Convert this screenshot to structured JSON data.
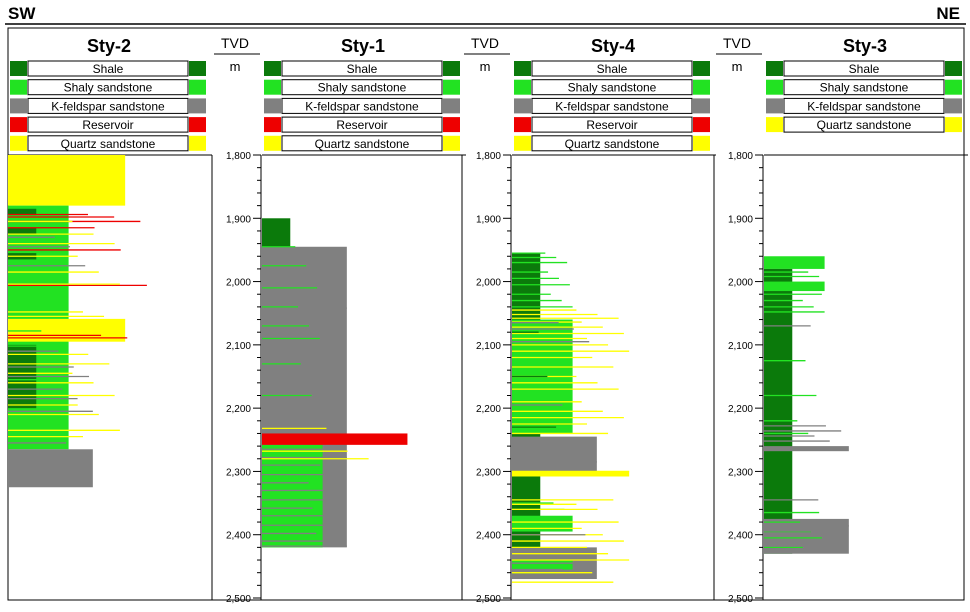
{
  "header": {
    "left": "SW",
    "right": "NE"
  },
  "colors": {
    "shale": "#0b7a0b",
    "shaly": "#22e222",
    "kfeld": "#808080",
    "reservoir": "#ee0000",
    "quartz": "#ffff00"
  },
  "legend_labels": {
    "shale": "Shale",
    "shaly": "Shaly sandstone",
    "kfeld": "K-feldspar sandstone",
    "reservoir": "Reservoir",
    "quartz": "Quartz sandstone"
  },
  "tvd": {
    "title": "TVD",
    "unit": "m"
  },
  "chart_data": {
    "type": "well-log-correlation",
    "y_axis": {
      "label": "TVD (m)",
      "range": [
        1800,
        2500
      ],
      "ticks": [
        1800,
        1900,
        2000,
        2100,
        2200,
        2300,
        2400,
        2500
      ],
      "tick_labels": [
        "1,800",
        "1,900",
        "2,000",
        "2,100",
        "2,200",
        "2,300",
        "2,400",
        "2,500"
      ]
    },
    "wells": [
      {
        "name": "Sty-2",
        "legend": [
          "shale",
          "shaly",
          "kfeld",
          "reservoir",
          "quartz"
        ],
        "intervals": [
          {
            "lith": "quartz",
            "top": 1800,
            "base": 1880
          },
          {
            "lith": "shaly",
            "top": 1880,
            "base": 2265
          },
          {
            "lith": "shale",
            "top": 1885,
            "base": 1895
          },
          {
            "lith": "shale",
            "top": 1915,
            "base": 1925
          },
          {
            "lith": "shale",
            "top": 1955,
            "base": 1965
          },
          {
            "lith": "quartz",
            "top": 2060,
            "base": 2095
          },
          {
            "lith": "shale",
            "top": 2100,
            "base": 2200
          },
          {
            "lith": "kfeld",
            "top": 2265,
            "base": 2325
          }
        ],
        "thin_beds": [
          {
            "lith": "reservoir",
            "depths": [
              1894,
              1898,
              1905,
              1915,
              1950,
              2006,
              2085,
              2089
            ]
          },
          {
            "lith": "quartz",
            "depths": [
              1905,
              1925,
              1940,
              1960,
              1985,
              2004,
              2048,
              2055,
              2060,
              2115,
              2130,
              2145,
              2160,
              2180,
              2195,
              2210,
              2235,
              2245
            ]
          },
          {
            "lith": "kfeld",
            "depths": [
              1930,
              1945,
              1975,
              2110,
              2135,
              2150,
              2170,
              2185,
              2205,
              2255,
              2275,
              2292
            ]
          },
          {
            "lith": "shaly",
            "depths": [
              2078,
              2102,
              2155,
              2225
            ]
          }
        ]
      },
      {
        "name": "Sty-1",
        "legend": [
          "shale",
          "shaly",
          "kfeld",
          "reservoir",
          "quartz"
        ],
        "intervals": [
          {
            "lith": "shale",
            "top": 1900,
            "base": 1945
          },
          {
            "lith": "kfeld",
            "top": 1945,
            "base": 2420
          },
          {
            "lith": "shaly",
            "top": 2258,
            "base": 2420
          },
          {
            "lith": "reservoir",
            "top": 2240,
            "base": 2258
          }
        ],
        "thin_beds": [
          {
            "lith": "kfeld",
            "depths": [
              1952,
              1960,
              1972,
              1980,
              1995,
              2005,
              2018,
              2030,
              2042,
              2055,
              2068,
              2080,
              2095,
              2108,
              2120,
              2160,
              2175,
              2205,
              2265,
              2278,
              2290,
              2305,
              2318,
              2330,
              2345,
              2358,
              2370,
              2385,
              2398,
              2410,
              2418
            ]
          },
          {
            "lith": "shaly",
            "depths": [
              1945,
              1975,
              2010,
              2040,
              2070,
              2090,
              2130,
              2180,
              2270,
              2310,
              2350,
              2390
            ]
          },
          {
            "lith": "quartz",
            "depths": [
              2232,
              2268,
              2280
            ]
          },
          {
            "lith": "reservoir",
            "depths": [
              2246,
              2250,
              2254
            ]
          }
        ]
      },
      {
        "name": "Sty-4",
        "legend": [
          "shale",
          "shaly",
          "kfeld",
          "reservoir",
          "quartz"
        ],
        "intervals": [
          {
            "lith": "shale",
            "top": 1955,
            "base": 2470
          },
          {
            "lith": "shaly",
            "top": 2060,
            "base": 2240
          },
          {
            "lith": "kfeld",
            "top": 2245,
            "base": 2300
          },
          {
            "lith": "quartz",
            "top": 2300,
            "base": 2308
          },
          {
            "lith": "shaly",
            "top": 2370,
            "base": 2395
          },
          {
            "lith": "kfeld",
            "top": 2420,
            "base": 2470
          },
          {
            "lith": "shaly",
            "top": 2440,
            "base": 2455
          }
        ],
        "thin_beds": [
          {
            "lith": "shaly",
            "depths": [
              1955,
              1962,
              1970,
              1985,
              1995,
              2005,
              2020,
              2030,
              2040,
              2350,
              2360,
              2440,
              2460
            ]
          },
          {
            "lith": "quartz",
            "depths": [
              2045,
              2052,
              2058,
              2064,
              2072,
              2082,
              2090,
              2100,
              2110,
              2120,
              2135,
              2150,
              2160,
              2170,
              2190,
              2205,
              2215,
              2225,
              2240,
              2300,
              2305,
              2345,
              2352,
              2360,
              2380,
              2390,
              2400,
              2410,
              2420,
              2430,
              2440,
              2460,
              2475
            ]
          },
          {
            "lith": "kfeld",
            "depths": [
              2065,
              2075,
              2095,
              2195,
              2250,
              2258,
              2266,
              2275,
              2285,
              2295,
              2400,
              2425,
              2435,
              2445,
              2455,
              2465
            ]
          },
          {
            "lith": "shale",
            "depths": [
              2080,
              2150,
              2230
            ]
          }
        ]
      },
      {
        "name": "Sty-3",
        "legend": [
          "shale",
          "shaly",
          "kfeld",
          "quartz"
        ],
        "intervals": [
          {
            "lith": "shaly",
            "top": 1960,
            "base": 1980
          },
          {
            "lith": "shale",
            "top": 1980,
            "base": 2430
          },
          {
            "lith": "shaly",
            "top": 2000,
            "base": 2015
          },
          {
            "lith": "kfeld",
            "top": 2260,
            "base": 2268
          },
          {
            "lith": "kfeld",
            "top": 2375,
            "base": 2430
          }
        ],
        "thin_beds": [
          {
            "lith": "shaly",
            "depths": [
              1975,
              1985,
              1992,
              2005,
              2012,
              2020,
              2030,
              2040,
              2048,
              2125,
              2180,
              2220,
              2240,
              2365,
              2380,
              2395,
              2405,
              2420
            ]
          },
          {
            "lith": "kfeld",
            "depths": [
              2070,
              2228,
              2236,
              2244,
              2252,
              2264,
              2345,
              2378,
              2386,
              2394,
              2402,
              2410,
              2418,
              2426
            ]
          }
        ]
      }
    ]
  }
}
